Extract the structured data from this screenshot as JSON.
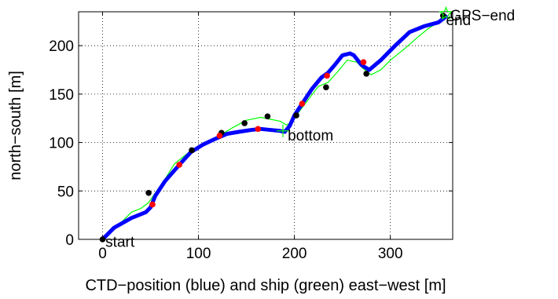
{
  "chart_data": {
    "type": "line",
    "title": "",
    "xlabel": "CTD−position (blue) and ship (green) east−west [m]",
    "ylabel": "north−south [m]",
    "xlim": [
      -25,
      365
    ],
    "ylim": [
      0,
      235
    ],
    "xticks": [
      0,
      100,
      200,
      300
    ],
    "yticks": [
      0,
      50,
      100,
      150,
      200
    ],
    "xtick_labels": [
      "0",
      "100",
      "200",
      "300"
    ],
    "ytick_labels": [
      "0",
      "50",
      "100",
      "150",
      "200"
    ],
    "grid": true,
    "series": [
      {
        "color": "#0000ff",
        "style": "thick line",
        "x": [
          0,
          12,
          30,
          45,
          50,
          55,
          65,
          80,
          92,
          105,
          118,
          130,
          142,
          155,
          165,
          175,
          185,
          190,
          195,
          200,
          208,
          218,
          228,
          235,
          242,
          250,
          258,
          262,
          266,
          270,
          278,
          290,
          305,
          320,
          335,
          350,
          358
        ],
        "y": [
          0,
          12,
          22,
          28,
          33,
          45,
          60,
          77,
          90,
          98,
          104,
          109,
          111,
          113,
          114,
          113,
          112,
          111,
          117,
          128,
          140,
          155,
          167,
          172,
          180,
          190,
          192,
          190,
          185,
          180,
          175,
          185,
          200,
          214,
          220,
          224,
          230
        ]
      },
      {
        "color": "#00ff00",
        "style": "thin line",
        "x": [
          0,
          10,
          20,
          30,
          40,
          48,
          55,
          65,
          75,
          90,
          105,
          120,
          135,
          150,
          165,
          175,
          185,
          192,
          198,
          205,
          215,
          225,
          235,
          245,
          255,
          265,
          272,
          280,
          290,
          300,
          315,
          330,
          340,
          350,
          358
        ],
        "y": [
          0,
          8,
          18,
          28,
          32,
          38,
          48,
          62,
          78,
          90,
          97,
          106,
          115,
          123,
          126,
          124,
          122,
          118,
          122,
          132,
          145,
          158,
          162,
          173,
          185,
          183,
          176,
          170,
          175,
          185,
          197,
          210,
          218,
          224,
          232
        ]
      }
    ],
    "points_black": {
      "x": [
        0,
        48,
        93,
        124,
        148,
        172,
        202,
        233,
        275,
        355
      ],
      "y": [
        0,
        48,
        92,
        110,
        120,
        127,
        128,
        157,
        171,
        231
      ]
    },
    "points_red": {
      "x": [
        52,
        80,
        122,
        162,
        208,
        234,
        272
      ],
      "y": [
        36,
        77,
        107,
        114,
        140,
        169,
        183
      ]
    },
    "annotations": [
      {
        "text": "start",
        "x": 3,
        "y": -3
      },
      {
        "text": "bottom",
        "x": 193,
        "y": 107
      },
      {
        "text": "GPS−end",
        "x": 362,
        "y": 231
      },
      {
        "text": "end",
        "x": 358,
        "y": 226
      }
    ],
    "markers": [
      {
        "name": "bottom",
        "symbol": "plus",
        "color": "#00ff00",
        "x": 188,
        "y": 112
      },
      {
        "name": "GPS-end",
        "symbol": "star",
        "color": "#00ff00",
        "x": 358,
        "y": 233
      }
    ]
  }
}
